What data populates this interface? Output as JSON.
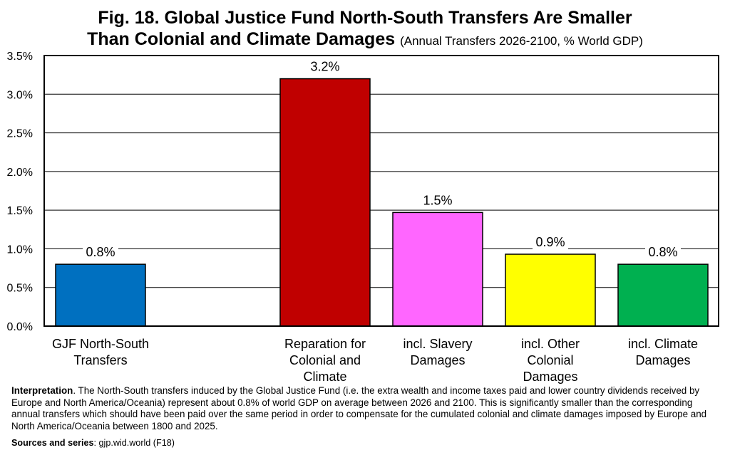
{
  "title": {
    "line1": "Fig. 18. Global Justice Fund North-South Transfers Are Smaller",
    "line2": "Than Colonial and Climate Damages",
    "subtitle": "(Annual Transfers 2026-2100, % World GDP)"
  },
  "chart_data": {
    "type": "bar",
    "categories": [
      [
        "GJF North-South",
        "Transfers"
      ],
      [
        "Reparation for",
        "Colonial and",
        "Climate"
      ],
      [
        "incl. Slavery",
        "Damages"
      ],
      [
        "incl. Other",
        "Colonial",
        "Damages"
      ],
      [
        "incl. Climate",
        "Damages"
      ]
    ],
    "values": [
      0.8,
      3.2,
      1.47,
      0.93,
      0.8
    ],
    "value_labels": [
      "0.8%",
      "3.2%",
      "1.5%",
      "0.9%",
      "0.8%"
    ],
    "colors": [
      "#0070c0",
      "#c00000",
      "#ff66ff",
      "#ffff00",
      "#00b050"
    ],
    "ylim": [
      0,
      3.5
    ],
    "yticks": [
      {
        "v": 0,
        "label": "0.0%"
      },
      {
        "v": 0.5,
        "label": "0.5%"
      },
      {
        "v": 1.0,
        "label": "1.0%"
      },
      {
        "v": 1.5,
        "label": "1.5%"
      },
      {
        "v": 2.0,
        "label": "2.0%"
      },
      {
        "v": 2.5,
        "label": "2.5%"
      },
      {
        "v": 3.0,
        "label": "3.0%"
      },
      {
        "v": 3.5,
        "label": "3.5%"
      }
    ],
    "grid": true
  },
  "note": {
    "label": "Interpretation",
    "text": ". The North-South transfers induced by the Global Justice Fund (i.e. the extra wealth and income taxes paid and lower country dividends received by Europe and North America/Oceania) represent about 0.8% of world GDP on average between 2026 and 2100. This is significantly smaller than the corresponding annual transfers which should have been paid over the same period in order to compensate for the cumulated colonial and climate damages imposed by Europe and North America/Oceania between 1800 and 2025."
  },
  "sources": {
    "label": "Sources and series",
    "text": ": gjp.wid.world (F18)"
  }
}
